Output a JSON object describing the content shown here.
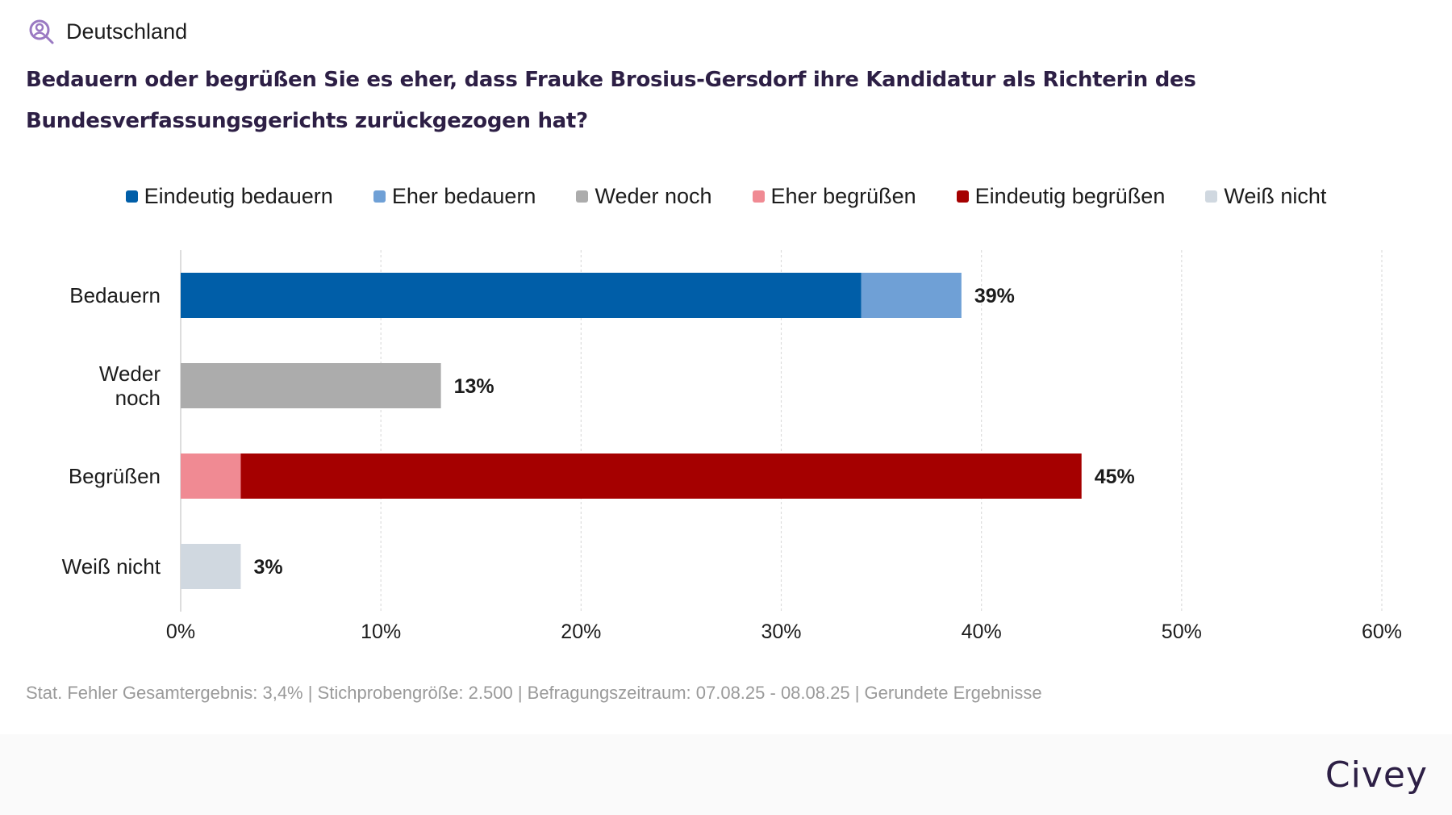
{
  "header": {
    "region_icon": "user-search-icon",
    "region": "Deutschland",
    "question": "Bedauern oder begrüßen Sie es eher, dass Frauke Brosius-Gersdorf ihre Kandidatur als Richterin des Bundesverfassungsgerichts zurückgezogen hat?"
  },
  "legend": [
    {
      "label": "Eindeutig bedauern",
      "color": "#005ea8"
    },
    {
      "label": "Eher bedauern",
      "color": "#6fa0d6"
    },
    {
      "label": "Weder noch",
      "color": "#acacac"
    },
    {
      "label": "Eher begrüßen",
      "color": "#f08a93"
    },
    {
      "label": "Eindeutig begrüßen",
      "color": "#a50000"
    },
    {
      "label": "Weiß nicht",
      "color": "#d0d8e0"
    }
  ],
  "chart_data": {
    "type": "bar",
    "orientation": "horizontal",
    "stacked": true,
    "title": "Bedauern oder begrüßen Sie es eher, dass Frauke Brosius-Gersdorf ihre Kandidatur als Richterin des Bundesverfassungsgerichts zurückgezogen hat?",
    "categories": [
      [
        "Bedauern"
      ],
      [
        "Weder",
        "noch"
      ],
      [
        "Begrüßen"
      ],
      [
        "Weiß nicht"
      ]
    ],
    "category_names": [
      "Bedauern",
      "Weder noch",
      "Begrüßen",
      "Weiß nicht"
    ],
    "series": [
      {
        "name": "Eindeutig bedauern",
        "color": "#005ea8",
        "values": [
          34,
          0,
          0,
          0
        ]
      },
      {
        "name": "Eher bedauern",
        "color": "#6fa0d6",
        "values": [
          5,
          0,
          0,
          0
        ]
      },
      {
        "name": "Weder noch",
        "color": "#acacac",
        "values": [
          0,
          13,
          0,
          0
        ]
      },
      {
        "name": "Eher begrüßen",
        "color": "#f08a93",
        "values": [
          0,
          0,
          3,
          0
        ]
      },
      {
        "name": "Eindeutig begrüßen",
        "color": "#a50000",
        "values": [
          0,
          0,
          42,
          0
        ]
      },
      {
        "name": "Weiß nicht",
        "color": "#d0d8e0",
        "values": [
          0,
          0,
          0,
          3
        ]
      }
    ],
    "totals": [
      "39%",
      "13%",
      "45%",
      "3%"
    ],
    "xlim": [
      0,
      60
    ],
    "xticks": [
      0,
      10,
      20,
      30,
      40,
      50,
      60
    ],
    "xtick_labels": [
      "0%",
      "10%",
      "20%",
      "30%",
      "40%",
      "50%",
      "60%"
    ],
    "xlabel": "",
    "ylabel": "",
    "grid": true,
    "legend_position": "top"
  },
  "footnote": "Stat. Fehler Gesamtergebnis: 3,4% | Stichprobengröße: 2.500 | Befragungszeitraum: 07.08.25 - 08.08.25 | Gerundete Ergebnisse",
  "footer": {
    "brand": "Civey"
  }
}
